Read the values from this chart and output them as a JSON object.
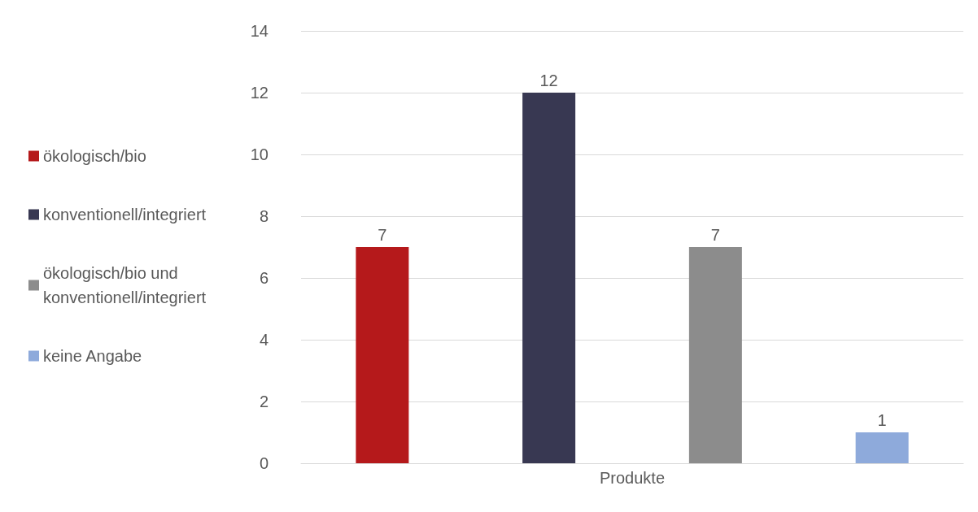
{
  "chart_data": {
    "type": "bar",
    "categories": [
      "Produkte"
    ],
    "series": [
      {
        "name": "ökologisch/bio",
        "color": "#b5191b",
        "values": [
          7
        ]
      },
      {
        "name": "konventionell/integriert",
        "color": "#383852",
        "values": [
          12
        ]
      },
      {
        "name": "ökologisch/bio und konventionell/integriert",
        "color": "#8c8c8c",
        "values": [
          7
        ]
      },
      {
        "name": "keine Angabe",
        "color": "#8eaadb",
        "values": [
          1
        ]
      }
    ],
    "ylim": [
      0,
      14
    ],
    "yticks": [
      0,
      2,
      4,
      6,
      8,
      10,
      12,
      14
    ],
    "grid": "y",
    "legend": "left",
    "data_labels": true
  }
}
